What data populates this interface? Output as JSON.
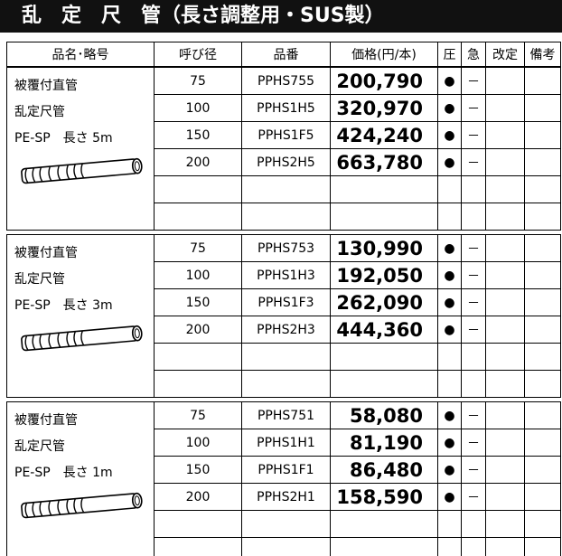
{
  "title": "乱　定　尺　管（長さ調整用・SUS製）",
  "headers": [
    "品名･略号",
    "呼び径",
    "品番",
    "価格(円/本)",
    "圧",
    "急",
    "改定",
    "備考"
  ],
  "groups": [
    {
      "label": [
        "被覆付直管",
        "乱定尺管",
        "PE-SP　長さ 5m"
      ],
      "rows": [
        {
          "size": "75",
          "code": "PPHS755",
          "price": "200,790",
          "pressure": "●",
          "urgent": "－"
        },
        {
          "size": "100",
          "code": "PPHS1H5",
          "price": "320,970",
          "pressure": "●",
          "urgent": "－"
        },
        {
          "size": "150",
          "code": "PPHS1F5",
          "price": "424,240",
          "pressure": "●",
          "urgent": "－"
        },
        {
          "size": "200",
          "code": "PPHS2H5",
          "price": "663,780",
          "pressure": "●",
          "urgent": "－"
        }
      ]
    },
    {
      "label": [
        "被覆付直管",
        "乱定尺管",
        "PE-SP　長さ 3m"
      ],
      "rows": [
        {
          "size": "75",
          "code": "PPHS753",
          "price": "130,990",
          "pressure": "●",
          "urgent": "－"
        },
        {
          "size": "100",
          "code": "PPHS1H3",
          "price": "192,050",
          "pressure": "●",
          "urgent": "－"
        },
        {
          "size": "150",
          "code": "PPHS1F3",
          "price": "262,090",
          "pressure": "●",
          "urgent": "－"
        },
        {
          "size": "200",
          "code": "PPHS2H3",
          "price": "444,360",
          "pressure": "●",
          "urgent": "－"
        }
      ]
    },
    {
      "label": [
        "被覆付直管",
        "乱定尺管",
        "PE-SP　長さ 1m"
      ],
      "rows": [
        {
          "size": "75",
          "code": "PPHS751",
          "price": "58,080",
          "pressure": "●",
          "urgent": "－"
        },
        {
          "size": "100",
          "code": "PPHS1H1",
          "price": "81,190",
          "pressure": "●",
          "urgent": "－"
        },
        {
          "size": "150",
          "code": "PPHS1F1",
          "price": "86,480",
          "pressure": "●",
          "urgent": "－"
        },
        {
          "size": "200",
          "code": "PPHS2H1",
          "price": "158,590",
          "pressure": "●",
          "urgent": "－"
        }
      ]
    }
  ]
}
